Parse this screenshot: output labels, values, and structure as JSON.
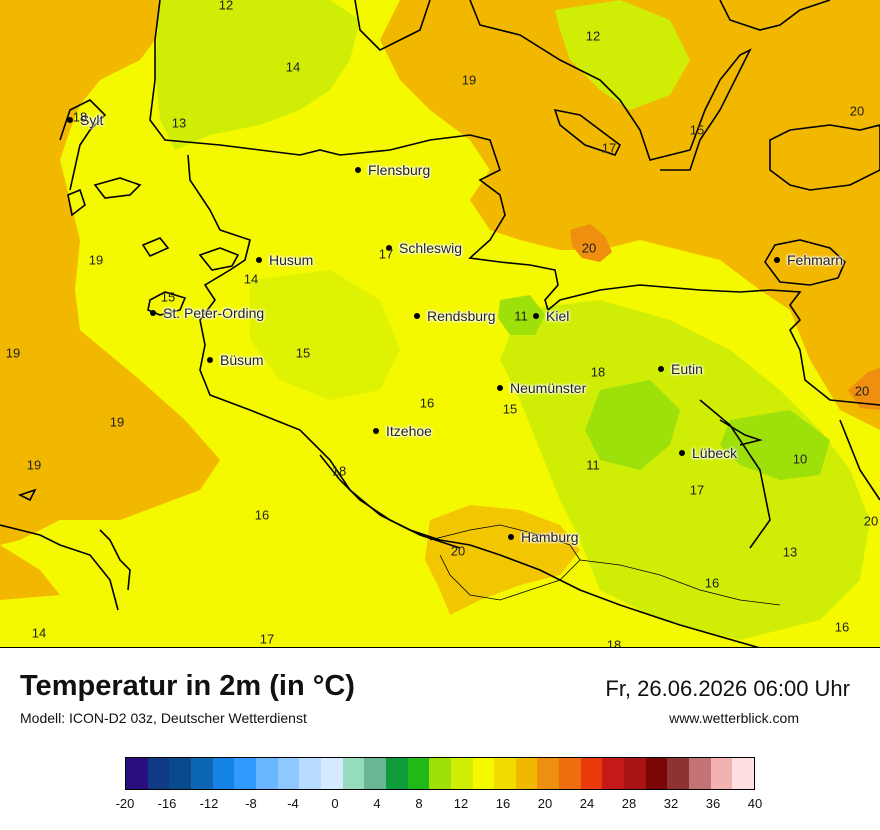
{
  "map": {
    "cities": [
      {
        "name": "Sylt",
        "label": "Sylt"
      },
      {
        "name": "Flensburg",
        "label": "Flensburg"
      },
      {
        "name": "Schleswig",
        "label": "Schleswig"
      },
      {
        "name": "Husum",
        "label": "Husum"
      },
      {
        "name": "Fehmarn",
        "label": "Fehmarn"
      },
      {
        "name": "St. Peter-Ording",
        "label": "St. Peter-Ording"
      },
      {
        "name": "Rendsburg",
        "label": "Rendsburg"
      },
      {
        "name": "Kiel",
        "label": "Kiel"
      },
      {
        "name": "Büsum",
        "label": "Büsum"
      },
      {
        "name": "Eutin",
        "label": "Eutin"
      },
      {
        "name": "Neumünster",
        "label": "Neumünster"
      },
      {
        "name": "Itzehoe",
        "label": "Itzehoe"
      },
      {
        "name": "Lübeck",
        "label": "Lübeck"
      },
      {
        "name": "Hamburg",
        "label": "Hamburg"
      }
    ],
    "values": [
      "12",
      "12",
      "14",
      "19",
      "18",
      "13",
      "15",
      "17",
      "20",
      "17",
      "14",
      "19",
      "20",
      "15",
      "11",
      "19",
      "15",
      "18",
      "20",
      "16",
      "15",
      "19",
      "19",
      "11",
      "10",
      "18",
      "17",
      "16",
      "20",
      "20",
      "13",
      "16",
      "14",
      "17",
      "18",
      "16"
    ]
  },
  "footer": {
    "title": "Temperatur in 2m (in °C)",
    "model": "Modell: ICON-D2 03z, Deutscher Wetterdienst",
    "datetime": "Fr, 26.06.2026 06:00 Uhr",
    "website": "www.wetterblick.com"
  },
  "legend": {
    "colors": [
      "#2a0e80",
      "#0f3a86",
      "#084a8c",
      "#0d66b4",
      "#1483e4",
      "#3299ff",
      "#6bb7ff",
      "#8ec8ff",
      "#b7dcff",
      "#d6ebff",
      "#96dcbd",
      "#6ab593",
      "#0e9b3a",
      "#1fba18",
      "#9ee00a",
      "#d0ee05",
      "#f4f900",
      "#f2dc00",
      "#f2b800",
      "#ef8f0f",
      "#ee6e0f",
      "#e83a0a",
      "#c41a18",
      "#a81314",
      "#7a0505",
      "#8f3232",
      "#c27474",
      "#f2b2b2",
      "#ffdfe2"
    ],
    "tick_labels": [
      "-20",
      "-16",
      "-12",
      "-8",
      "-4",
      "0",
      "4",
      "8",
      "12",
      "16",
      "20",
      "24",
      "28",
      "32",
      "36",
      "40"
    ]
  }
}
